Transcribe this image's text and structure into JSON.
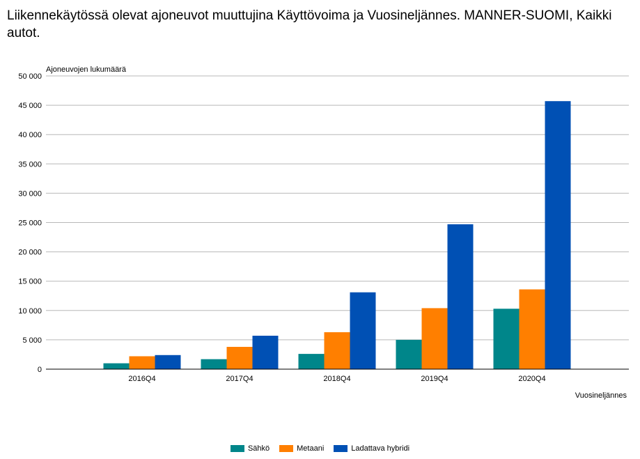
{
  "chart_data": {
    "type": "bar",
    "title": "Liikennekäytössä olevat ajoneuvot muuttujina Käyttövoima ja Vuosineljännes. MANNER-SUOMI, Kaikki autot.",
    "xlabel": "Vuosineljännes",
    "ylabel": "Ajoneuvojen lukumäärä",
    "ylim": [
      0,
      50000
    ],
    "yticks": [
      0,
      5000,
      10000,
      15000,
      20000,
      25000,
      30000,
      35000,
      40000,
      45000,
      50000
    ],
    "ytick_labels": [
      "0",
      "5 000",
      "10 000",
      "15 000",
      "20 000",
      "25 000",
      "30 000",
      "35 000",
      "40 000",
      "45 000",
      "50 000"
    ],
    "grid": true,
    "legend_position": "bottom",
    "categories": [
      "2016Q4",
      "2017Q4",
      "2018Q4",
      "2019Q4",
      "2020Q4"
    ],
    "series": [
      {
        "name": "Sähkö",
        "color": "#00868a",
        "values": [
          1000,
          1700,
          2600,
          5000,
          10300
        ]
      },
      {
        "name": "Metaani",
        "color": "#ff7f00",
        "values": [
          2200,
          3800,
          6300,
          10400,
          13600
        ]
      },
      {
        "name": "Ladattava hybridi",
        "color": "#0050b4",
        "values": [
          2400,
          5700,
          13100,
          24700,
          45700
        ]
      }
    ]
  }
}
